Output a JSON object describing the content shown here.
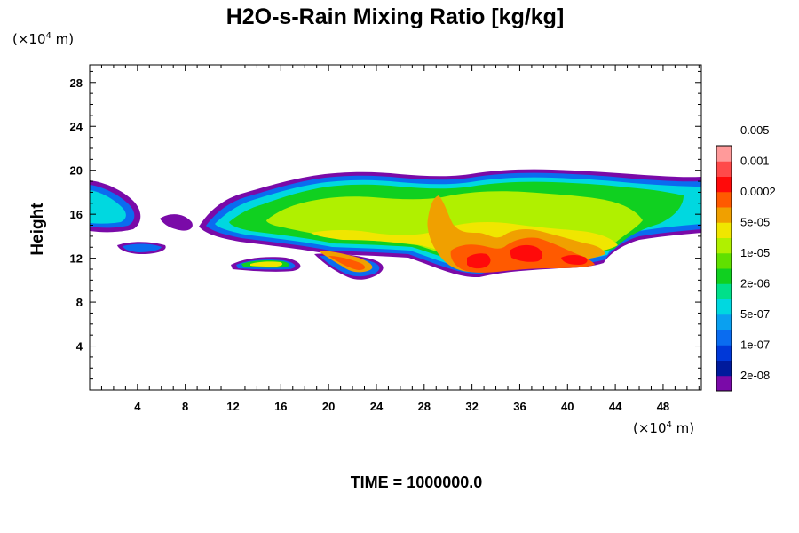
{
  "chart_data": {
    "type": "heatmap",
    "title": "H2O-s-Rain Mixing Ratio [kg/kg]",
    "ylabel": "Height",
    "x_unit": {
      "prefix": "(×10",
      "exp": "4",
      "suffix": " m)"
    },
    "y_unit": {
      "prefix": "(×10",
      "exp": "4",
      "suffix": " m)"
    },
    "xlim": [
      0,
      51.2
    ],
    "ylim": [
      0,
      29.6
    ],
    "x_ticks": [
      4,
      8,
      12,
      16,
      20,
      24,
      28,
      32,
      36,
      40,
      44,
      48
    ],
    "y_ticks": [
      4,
      8,
      12,
      16,
      20,
      24,
      28
    ],
    "x_tick_labels": [
      "4",
      "8",
      "12",
      "16",
      "20",
      "24",
      "28",
      "32",
      "36",
      "40",
      "44",
      "48"
    ],
    "y_tick_labels": [
      "4",
      "8",
      "12",
      "16",
      "20",
      "24",
      "28"
    ],
    "colorbar": {
      "colors": [
        "#7a0aa8",
        "#001a9c",
        "#0038d8",
        "#0a6cf0",
        "#0aa0f0",
        "#00d8e0",
        "#00e08a",
        "#10d020",
        "#60e000",
        "#b0f000",
        "#f0e600",
        "#f0a000",
        "#ff5a00",
        "#ff0a0a",
        "#ff4a4a",
        "#ff9a9a"
      ],
      "labels": [
        "2e-08",
        "1e-07",
        "5e-07",
        "2e-06",
        "1e-05",
        "5e-05",
        "0.0002",
        "0.001",
        "0.005"
      ]
    },
    "time_label": "TIME = 1000000.0",
    "cloud": {
      "main_band": {
        "x_range": [
          9.5,
          51.2
        ],
        "y_range": [
          13,
          20.5
        ]
      },
      "left_fragment": {
        "x_range": [
          0,
          4.5
        ],
        "y_range": [
          14.5,
          19.5
        ]
      },
      "lower_fragments": [
        {
          "x_range": [
            12,
            17.5
          ],
          "y_range": [
            11.2,
            12.3
          ]
        },
        {
          "x_range": [
            20,
            24.5
          ],
          "y_range": [
            10.5,
            12.5
          ]
        }
      ],
      "maximum_centers": [
        {
          "x": 32,
          "y": 12,
          "value": 0.001
        },
        {
          "x": 36,
          "y": 13,
          "value": 0.001
        },
        {
          "x": 41,
          "y": 12,
          "value": 0.001
        }
      ]
    }
  }
}
